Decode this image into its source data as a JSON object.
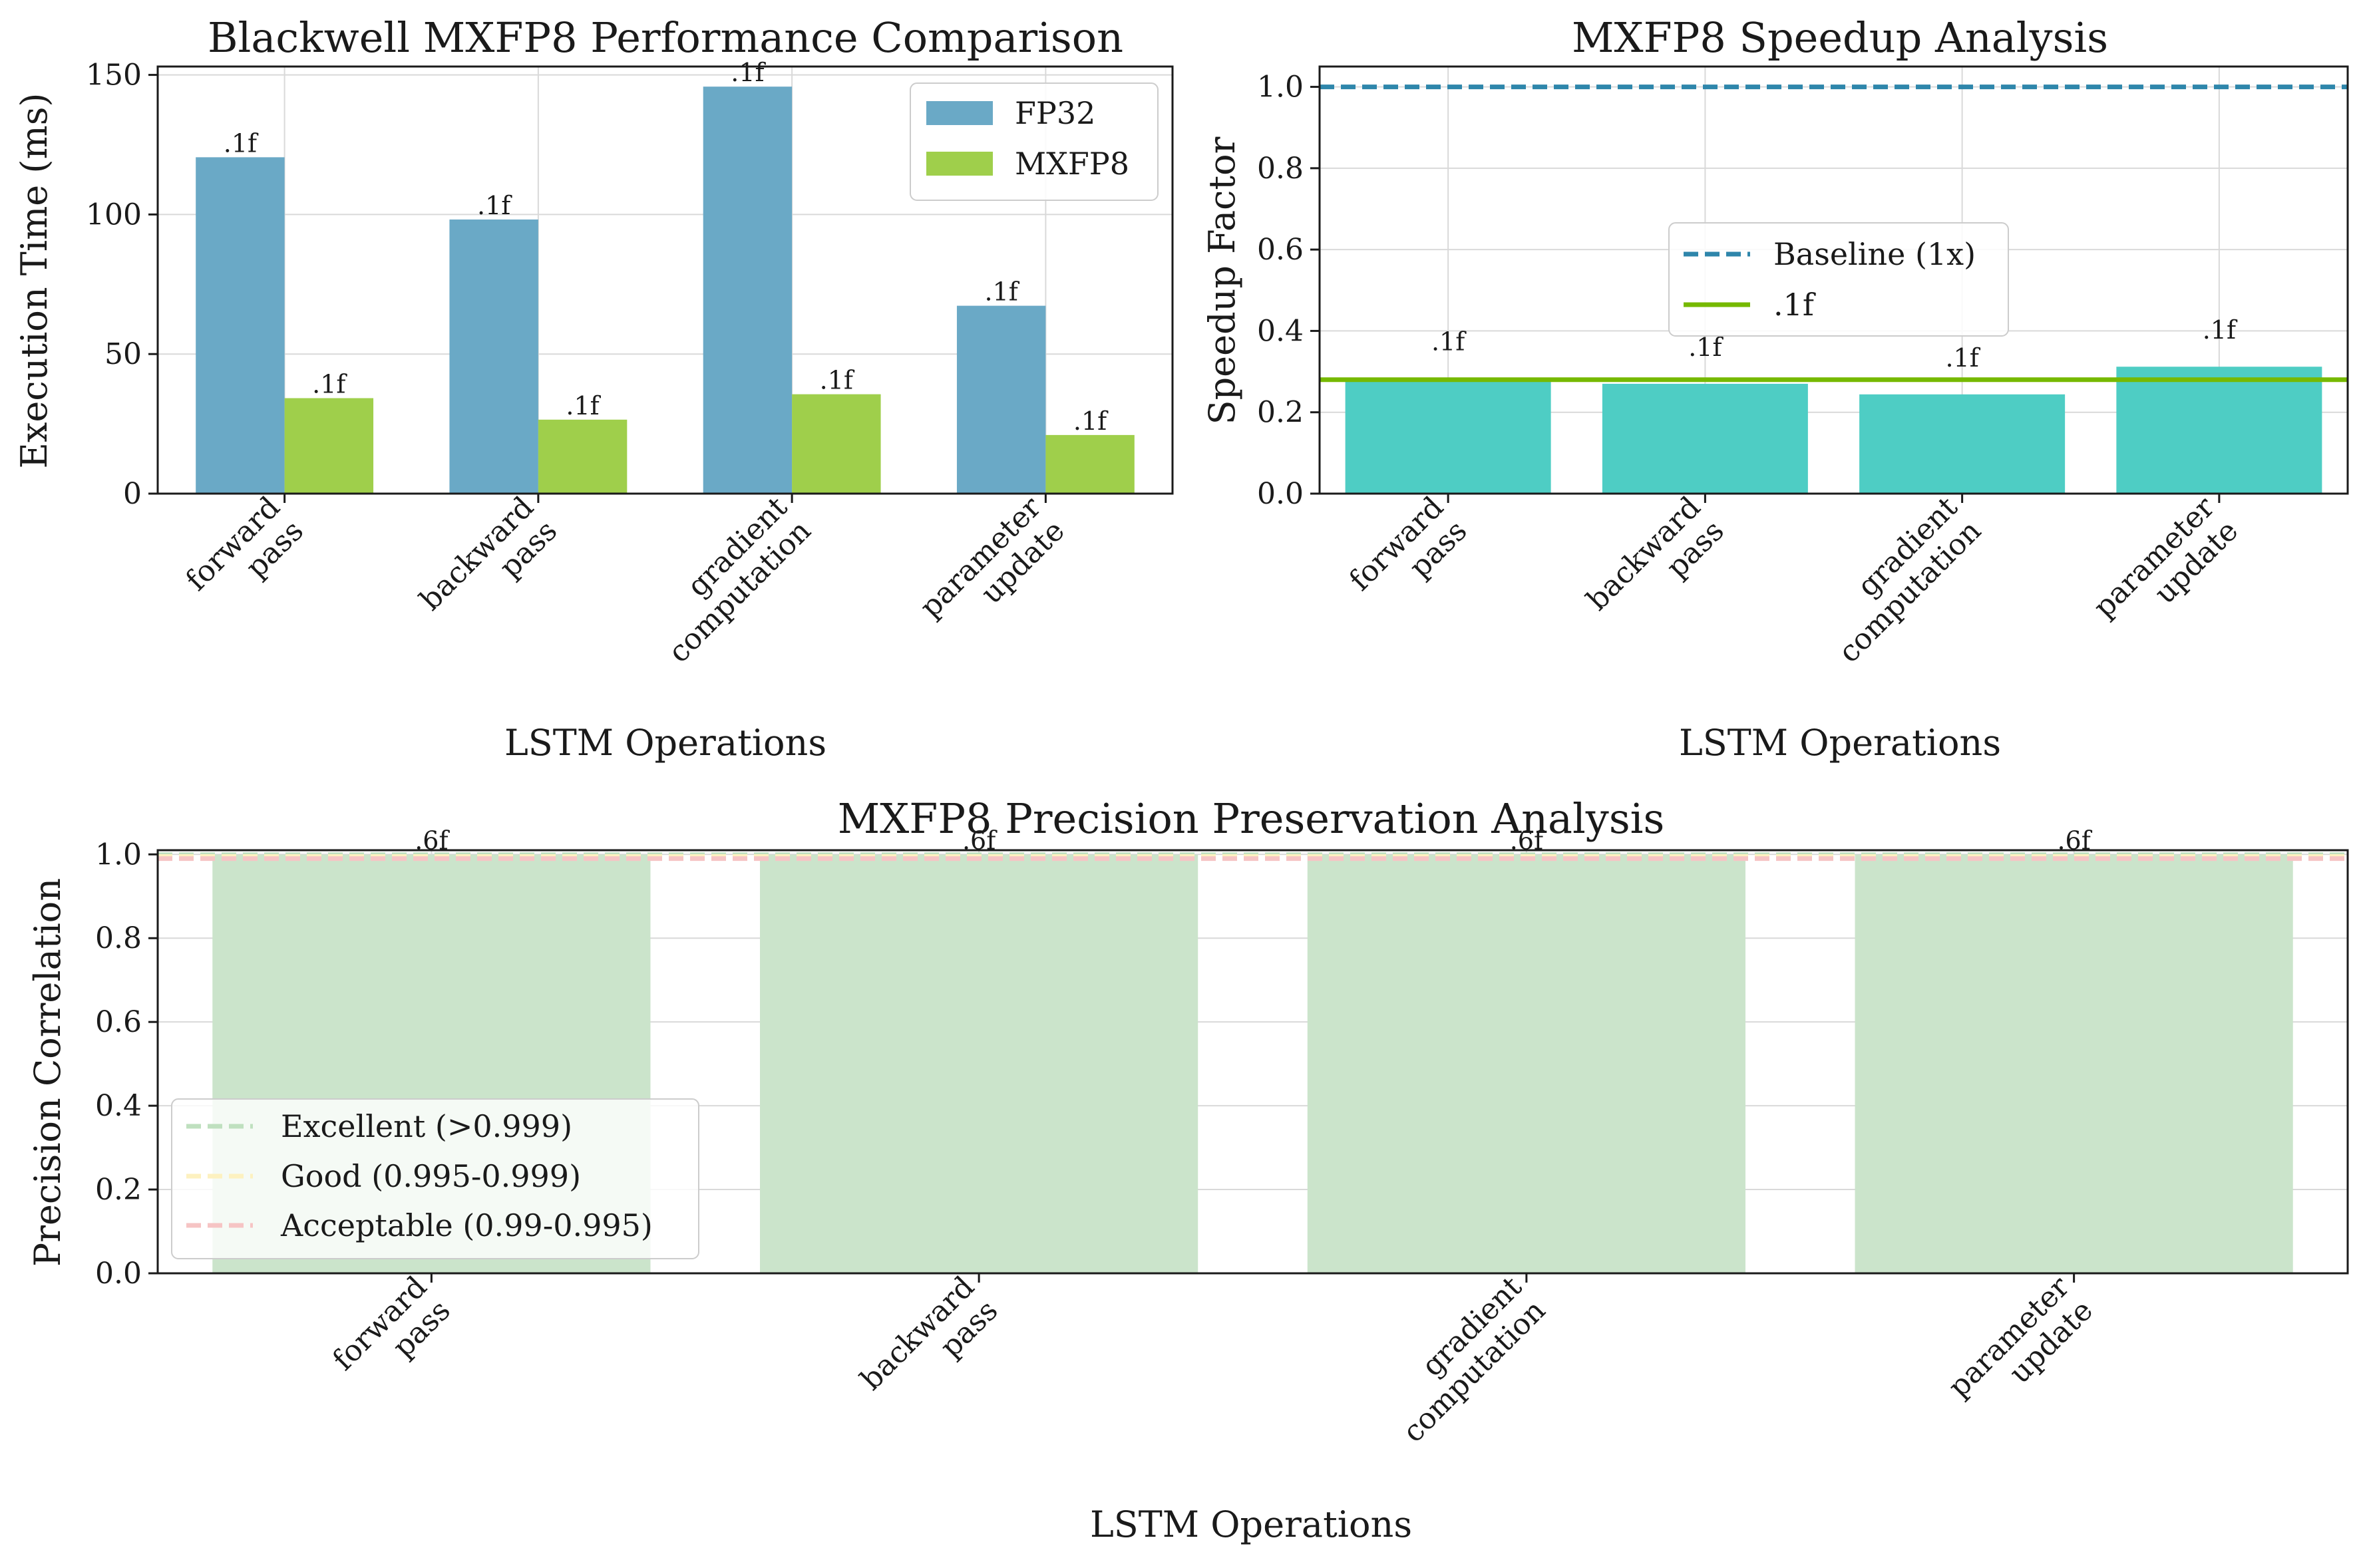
{
  "colors": {
    "fp32": "#6aa9c6",
    "mxfp8": "#9fcf4b",
    "speedup_bar": "#4ecdc4",
    "baseline_line": "#2e86ab",
    "mean_line": "#76b900",
    "precision_bar": "#cbe4cb",
    "excellent": "#bfe0bf",
    "good": "#fdf1c0",
    "acceptable": "#f6c4c4"
  },
  "chart_data": [
    {
      "id": "perf",
      "type": "bar",
      "title": "Blackwell MXFP8 Performance Comparison",
      "xlabel": "LSTM Operations",
      "ylabel": "Execution Time (ms)",
      "categories": [
        [
          "forward",
          "pass"
        ],
        [
          "backward",
          "pass"
        ],
        [
          "gradient",
          "computation"
        ],
        [
          "parameter",
          "update"
        ]
      ],
      "series": [
        {
          "name": "FP32",
          "values": [
            120.5,
            98.2,
            145.8,
            67.3
          ],
          "labels": [
            ".1f",
            ".1f",
            ".1f",
            ".1f"
          ]
        },
        {
          "name": "MXFP8",
          "values": [
            34.2,
            26.5,
            35.6,
            21.0
          ],
          "labels": [
            ".1f",
            ".1f",
            ".1f",
            ".1f"
          ]
        }
      ],
      "ylim": [
        0,
        153
      ],
      "yticks": [
        "0",
        "50",
        "100",
        "150"
      ],
      "ytick_values": [
        0,
        50,
        100,
        150
      ],
      "grid": true,
      "legend": "top-right"
    },
    {
      "id": "speedup",
      "type": "bar",
      "title": "MXFP8 Speedup Analysis",
      "xlabel": "LSTM Operations",
      "ylabel": "Speedup Factor",
      "categories": [
        [
          "forward",
          "pass"
        ],
        [
          "backward",
          "pass"
        ],
        [
          "gradient",
          "computation"
        ],
        [
          "parameter",
          "update"
        ]
      ],
      "values": [
        0.284,
        0.27,
        0.244,
        0.312
      ],
      "labels": [
        ".1f",
        ".1f",
        ".1f",
        ".1f"
      ],
      "lines": [
        {
          "name": "Baseline (1x)",
          "y": 1.0,
          "style": "dashed"
        },
        {
          "name": ".1f",
          "y": 0.28,
          "style": "solid"
        }
      ],
      "ylim": [
        0,
        1.05
      ],
      "yticks": [
        "0.0",
        "0.2",
        "0.4",
        "0.6",
        "0.8",
        "1.0"
      ],
      "ytick_values": [
        0,
        0.2,
        0.4,
        0.6,
        0.8,
        1.0
      ],
      "grid": true,
      "legend": "center"
    },
    {
      "id": "precision",
      "type": "bar",
      "title": "MXFP8 Precision Preservation Analysis",
      "xlabel": "LSTM Operations",
      "ylabel": "Precision Correlation",
      "categories": [
        [
          "forward",
          "pass"
        ],
        [
          "backward",
          "pass"
        ],
        [
          "gradient",
          "computation"
        ],
        [
          "parameter",
          "update"
        ]
      ],
      "values": [
        0.9995,
        0.9993,
        0.9994,
        0.9996
      ],
      "labels": [
        ".6f",
        ".6f",
        ".6f",
        ".6f"
      ],
      "lines": [
        {
          "name": "Excellent (>0.999)",
          "y": 0.999,
          "style": "dashed"
        },
        {
          "name": "Good (0.995-0.999)",
          "y": 0.995,
          "style": "dashed"
        },
        {
          "name": "Acceptable (0.99-0.995)",
          "y": 0.99,
          "style": "dashed"
        }
      ],
      "ylim": [
        0,
        1.01
      ],
      "yticks": [
        "0.0",
        "0.2",
        "0.4",
        "0.6",
        "0.8",
        "1.0"
      ],
      "ytick_values": [
        0,
        0.2,
        0.4,
        0.6,
        0.8,
        1.0
      ],
      "grid": true,
      "legend": "lower-left"
    }
  ]
}
